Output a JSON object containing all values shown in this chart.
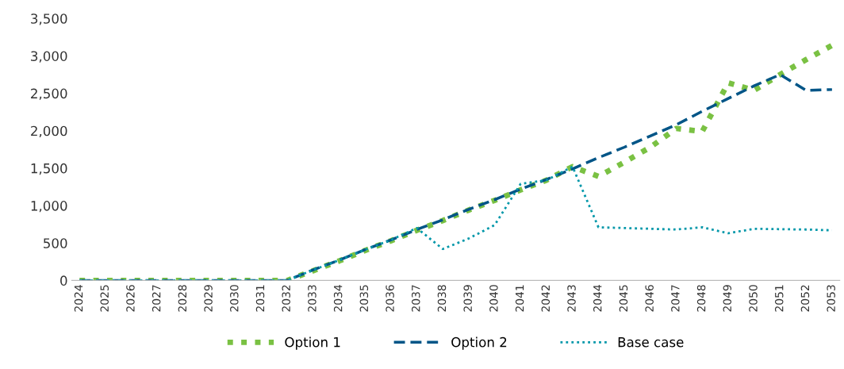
{
  "chart_data": {
    "type": "line",
    "categories": [
      "2024",
      "2025",
      "2026",
      "2027",
      "2028",
      "2029",
      "2030",
      "2031",
      "2032",
      "2033",
      "2034",
      "2035",
      "2036",
      "2037",
      "2038",
      "2039",
      "2040",
      "2041",
      "2042",
      "2043",
      "2044",
      "2045",
      "2046",
      "2047",
      "2048",
      "2049",
      "2050",
      "2051",
      "2052",
      "2053"
    ],
    "series": [
      {
        "name": "Option 1",
        "color": "#7ac143",
        "line_style": "dotted",
        "values": [
          0,
          0,
          0,
          0,
          0,
          0,
          0,
          0,
          0,
          130,
          260,
          400,
          530,
          670,
          800,
          940,
          1070,
          1210,
          1340,
          1520,
          1390,
          1580,
          1780,
          2030,
          1990,
          2640,
          2540,
          2750,
          2950,
          3140
        ]
      },
      {
        "name": "Option 2",
        "color": "#005587",
        "line_style": "dashed",
        "values": [
          0,
          0,
          0,
          0,
          0,
          0,
          0,
          0,
          0,
          140,
          270,
          410,
          540,
          680,
          810,
          950,
          1080,
          1220,
          1350,
          1490,
          1640,
          1780,
          1930,
          2080,
          2260,
          2430,
          2600,
          2750,
          2540,
          2550
        ]
      },
      {
        "name": "Base case",
        "color": "#0097a9",
        "line_style": "dotted",
        "values": [
          0,
          0,
          0,
          0,
          0,
          0,
          0,
          0,
          0,
          140,
          270,
          410,
          540,
          700,
          420,
          560,
          740,
          1290,
          1340,
          1520,
          710,
          700,
          690,
          680,
          710,
          630,
          690,
          685,
          680,
          670
        ]
      }
    ],
    "ylim": [
      0,
      3500
    ],
    "yticks": [
      {
        "value": 0,
        "label": "0"
      },
      {
        "value": 500,
        "label": "500"
      },
      {
        "value": 1000,
        "label": "1,000"
      },
      {
        "value": 1500,
        "label": "1,500"
      },
      {
        "value": 2000,
        "label": "2,000"
      },
      {
        "value": 2500,
        "label": "2,500"
      },
      {
        "value": 3000,
        "label": "3,000"
      },
      {
        "value": 3500,
        "label": "3,500"
      }
    ],
    "grid": false,
    "legend": "bottom"
  }
}
